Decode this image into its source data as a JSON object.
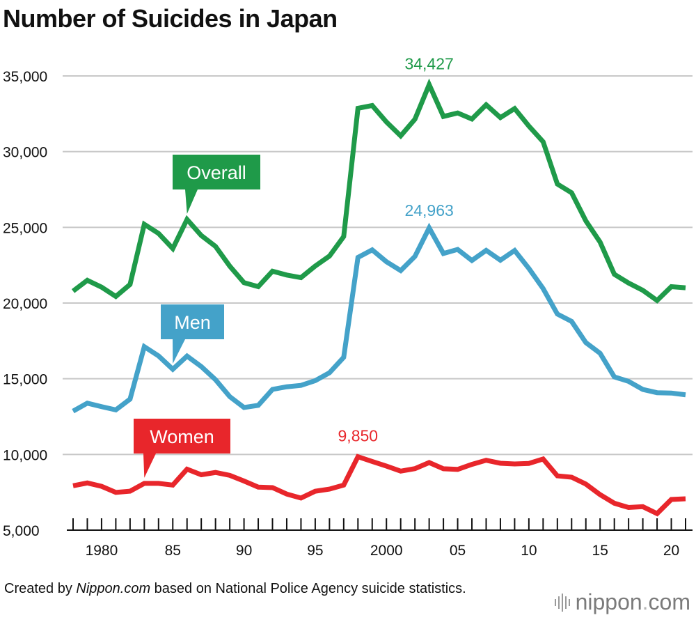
{
  "chart_data": {
    "type": "line",
    "title": "Number of Suicides in Japan",
    "xlabel": "",
    "ylabel": "",
    "ylim": [
      5000,
      35000
    ],
    "yticks": [
      5000,
      10000,
      15000,
      20000,
      25000,
      30000,
      35000
    ],
    "ytick_labels": [
      "5,000",
      "10,000",
      "15,000",
      "20,000",
      "25,000",
      "30,000",
      "35,000"
    ],
    "xlim": [
      1978,
      2021
    ],
    "xtick_years": [
      1980,
      1985,
      1990,
      1995,
      2000,
      2005,
      2010,
      2015,
      2020
    ],
    "xtick_labels": [
      "1980",
      "85",
      "90",
      "95",
      "2000",
      "05",
      "10",
      "15",
      "20"
    ],
    "x": [
      1978,
      1979,
      1980,
      1981,
      1982,
      1983,
      1984,
      1985,
      1986,
      1987,
      1988,
      1989,
      1990,
      1991,
      1992,
      1993,
      1994,
      1995,
      1996,
      1997,
      1998,
      1999,
      2000,
      2001,
      2002,
      2003,
      2004,
      2005,
      2006,
      2007,
      2008,
      2009,
      2010,
      2011,
      2012,
      2013,
      2014,
      2015,
      2016,
      2017,
      2018,
      2019,
      2020,
      2021
    ],
    "series": [
      {
        "name": "Overall",
        "color": "#1f9a49",
        "values": [
          20788,
          21503,
          21048,
          20434,
          21228,
          25202,
          24596,
          23599,
          25524,
          24460,
          23742,
          22436,
          21346,
          21084,
          22104,
          21851,
          21679,
          22445,
          23104,
          24391,
          32863,
          33048,
          31957,
          31042,
          32143,
          34427,
          32325,
          32552,
          32155,
          33093,
          32249,
          32845,
          31690,
          30651,
          27858,
          27283,
          25427,
          24025,
          21897,
          21321,
          20840,
          20169,
          21081,
          21007
        ]
      },
      {
        "name": "Men",
        "color": "#44a2c9",
        "values": [
          12859,
          13386,
          13155,
          12942,
          13654,
          17116,
          16508,
          15624,
          16497,
          15802,
          14934,
          13818,
          13102,
          13242,
          14296,
          14468,
          14560,
          14874,
          15393,
          16416,
          23013,
          23512,
          22727,
          22144,
          23080,
          24963,
          23272,
          23540,
          22813,
          23478,
          22831,
          23472,
          22283,
          20955,
          19273,
          18787,
          17386,
          16681,
          15121,
          14826,
          14290,
          14078,
          14055,
          13939
        ]
      },
      {
        "name": "Women",
        "color": "#e8262b",
        "values": [
          7929,
          8117,
          7893,
          7492,
          7574,
          8086,
          8088,
          7975,
          9027,
          8658,
          8808,
          8618,
          8244,
          7842,
          7808,
          7383,
          7119,
          7571,
          7711,
          7975,
          9850,
          9536,
          9230,
          8898,
          9063,
          9464,
          9053,
          9012,
          9342,
          9615,
          9418,
          9373,
          9407,
          9696,
          8585,
          8496,
          8041,
          7344,
          6776,
          6495,
          6550,
          6091,
          7026,
          7068
        ]
      }
    ],
    "callouts": [
      {
        "series": "Overall",
        "label": "Overall",
        "year": 1986
      },
      {
        "series": "Men",
        "label": "Men",
        "year": 1985
      },
      {
        "series": "Women",
        "label": "Women",
        "year": 1983
      }
    ],
    "peak_labels": [
      {
        "series": "Overall",
        "year": 2003,
        "value": 34427,
        "label": "34,427"
      },
      {
        "series": "Men",
        "year": 2003,
        "value": 24963,
        "label": "24,963"
      },
      {
        "series": "Women",
        "year": 1998,
        "value": 9850,
        "label": "9,850"
      }
    ],
    "grid": "horizontal"
  },
  "footer": {
    "prefix": "Created by ",
    "source_italic": "Nippon.com",
    "suffix": " based on National Police Agency suicide statistics."
  },
  "logo": {
    "main": "nippon",
    "dot": ".",
    "tld": "com"
  }
}
